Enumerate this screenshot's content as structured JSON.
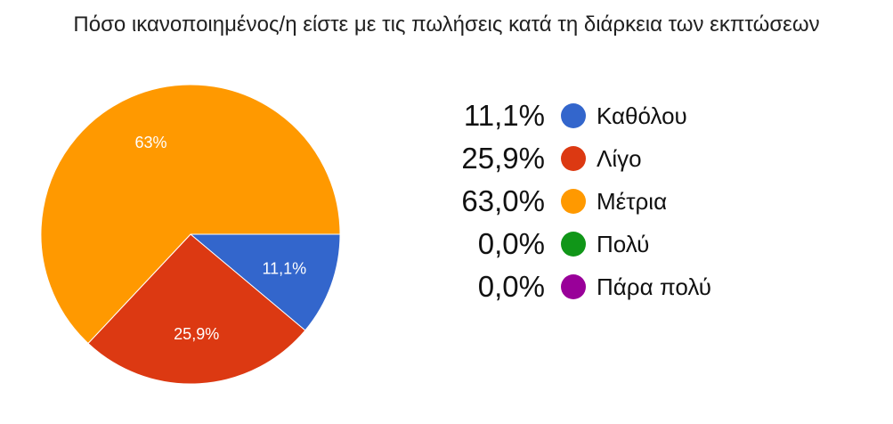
{
  "chart_data": {
    "type": "pie",
    "title": "Πόσο ικανοποιημένος/η είστε με τις πωλήσεις κατά τη διάρκεια των εκπτώσεων",
    "slices": [
      {
        "label": "Καθόλου",
        "value": 11.1,
        "legend_pct": "11,1%",
        "slice_label": "11,1%",
        "color": "#3366cc"
      },
      {
        "label": "Λίγο",
        "value": 25.9,
        "legend_pct": "25,9%",
        "slice_label": "25,9%",
        "color": "#dc3912"
      },
      {
        "label": "Μέτρια",
        "value": 63.0,
        "legend_pct": "63,0%",
        "slice_label": "63%",
        "color": "#ff9900"
      },
      {
        "label": "Πολύ",
        "value": 0.0,
        "legend_pct": "0,0%",
        "slice_label": "",
        "color": "#109618"
      },
      {
        "label": "Πάρα πολύ",
        "value": 0.0,
        "legend_pct": "0,0%",
        "slice_label": "",
        "color": "#990099"
      }
    ],
    "legend_position": "right"
  }
}
